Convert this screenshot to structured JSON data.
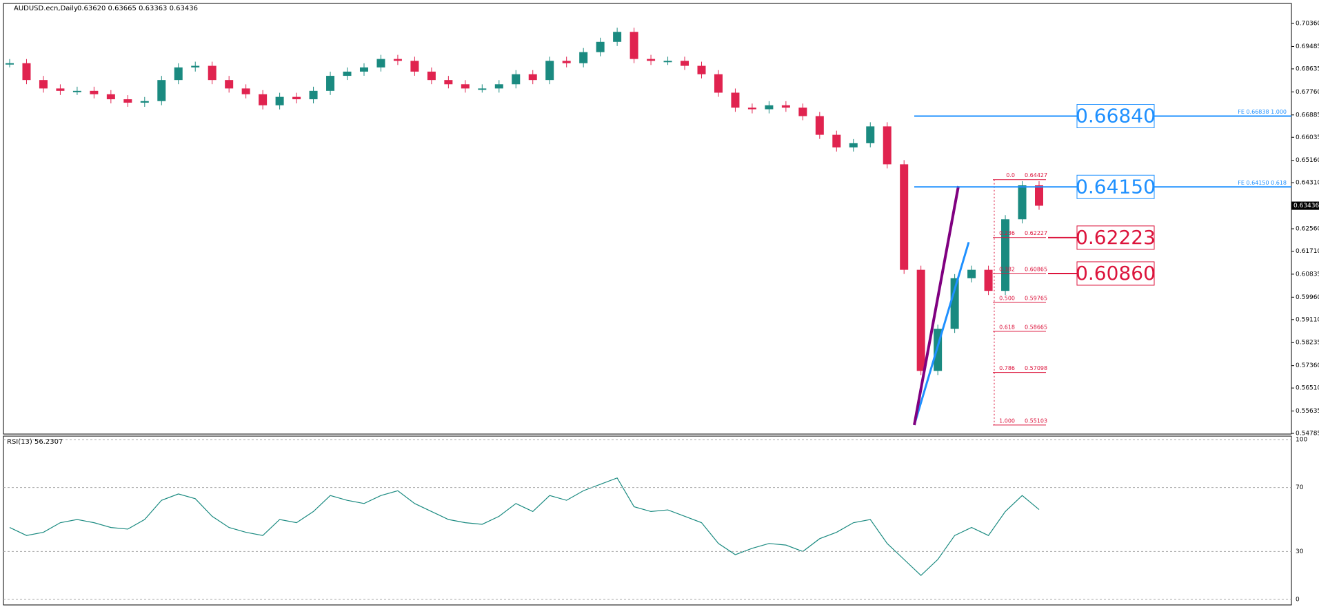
{
  "chart_data": [
    {
      "type": "candlestick",
      "title": "AUDUSD.ecn,Daily",
      "subtitle": "0.63620 0.63665 0.63363 0.63436",
      "up_color": "#1a8a80",
      "down_color": "#e0234f",
      "last_price": 0.63436,
      "ylim": [
        0.5476,
        0.7112
      ],
      "yticks": [
        {
          "value": 0.7036,
          "label": "0.70360"
        },
        {
          "value": 0.69485,
          "label": "0.69485"
        },
        {
          "value": 0.68635,
          "label": "0.68635"
        },
        {
          "value": 0.6776,
          "label": "0.67760"
        },
        {
          "value": 0.66885,
          "label": "0.66885"
        },
        {
          "value": 0.66035,
          "label": "0.66035"
        },
        {
          "value": 0.6516,
          "label": "0.65160"
        },
        {
          "value": 0.6431,
          "label": "0.64310"
        },
        {
          "value": 0.6256,
          "label": "0.62560"
        },
        {
          "value": 0.6171,
          "label": "0.61710"
        },
        {
          "value": 0.60835,
          "label": "0.60835"
        },
        {
          "value": 0.5996,
          "label": "0.59960"
        },
        {
          "value": 0.5911,
          "label": "0.59110"
        },
        {
          "value": 0.58235,
          "label": "0.58235"
        },
        {
          "value": 0.5736,
          "label": "0.57360"
        },
        {
          "value": 0.5651,
          "label": "0.56510"
        },
        {
          "value": 0.55635,
          "label": "0.55635"
        },
        {
          "value": 0.54785,
          "label": "0.54785"
        }
      ],
      "close": [
        0.6885,
        0.6821,
        0.6789,
        0.678,
        0.678,
        0.6767,
        0.6748,
        0.6735,
        0.6741,
        0.6821,
        0.6869,
        0.6875,
        0.6821,
        0.6789,
        0.6767,
        0.6725,
        0.6757,
        0.6748,
        0.678,
        0.6837,
        0.6853,
        0.6869,
        0.6901,
        0.6894,
        0.6853,
        0.6821,
        0.6805,
        0.6789,
        0.6789,
        0.6805,
        0.6843,
        0.6821,
        0.6894,
        0.6885,
        0.6927,
        0.6966,
        0.7004,
        0.6901,
        0.6894,
        0.6894,
        0.6875,
        0.6843,
        0.6773,
        0.6716,
        0.671,
        0.6725,
        0.6716,
        0.6684,
        0.6613,
        0.6565,
        0.6581,
        0.6645,
        0.6501,
        0.61,
        0.5716,
        0.5876,
        0.6068,
        0.61,
        0.602,
        0.6292,
        0.6421,
        0.63436
      ],
      "levels": [
        {
          "value": 0.6684,
          "label": "0.66840",
          "color": "#1e90ff",
          "note": "FE 0.66838  1.000"
        },
        {
          "value": 0.6415,
          "label": "0.64150",
          "color": "#1e90ff",
          "note": "FE 0.64150  0.618"
        },
        {
          "value": 0.62223,
          "label": "0.62223",
          "color": "#dc143c"
        },
        {
          "value": 0.6086,
          "label": "0.60860",
          "color": "#dc143c"
        }
      ],
      "fibonacci": [
        {
          "level": "0.0",
          "value": 0.64427,
          "label": "0.64427"
        },
        {
          "level": "0.236",
          "value": 0.62227,
          "label": "0.62227"
        },
        {
          "level": "0.382",
          "value": 0.60865,
          "label": "0.60865"
        },
        {
          "level": "0.500",
          "value": 0.59765,
          "label": "0.59765"
        },
        {
          "level": "0.618",
          "value": 0.58665,
          "label": "0.58665"
        },
        {
          "level": "0.786",
          "value": 0.57098,
          "label": "0.57098"
        },
        {
          "level": "1.000",
          "value": 0.55103,
          "label": "0.55103"
        }
      ],
      "trendlines": [
        {
          "color": "#1e90ff",
          "from": 0.55103,
          "to": 0.6205
        },
        {
          "color": "#800080",
          "from": 0.55103,
          "to": 0.6418
        }
      ]
    },
    {
      "type": "line",
      "title": "RSI(13) 56.2307",
      "color": "#1a8a80",
      "ylim": [
        0,
        100
      ],
      "yticks": [
        100,
        70,
        30,
        0
      ],
      "values": [
        45,
        40,
        42,
        48,
        50,
        48,
        45,
        44,
        50,
        62,
        66,
        63,
        52,
        45,
        42,
        40,
        50,
        48,
        55,
        65,
        62,
        60,
        65,
        68,
        60,
        55,
        50,
        48,
        47,
        52,
        60,
        55,
        65,
        62,
        68,
        72,
        76,
        58,
        55,
        56,
        52,
        48,
        35,
        28,
        32,
        35,
        34,
        30,
        38,
        42,
        48,
        50,
        35,
        25,
        15,
        25,
        40,
        45,
        40,
        55,
        65,
        56.2307
      ]
    }
  ]
}
